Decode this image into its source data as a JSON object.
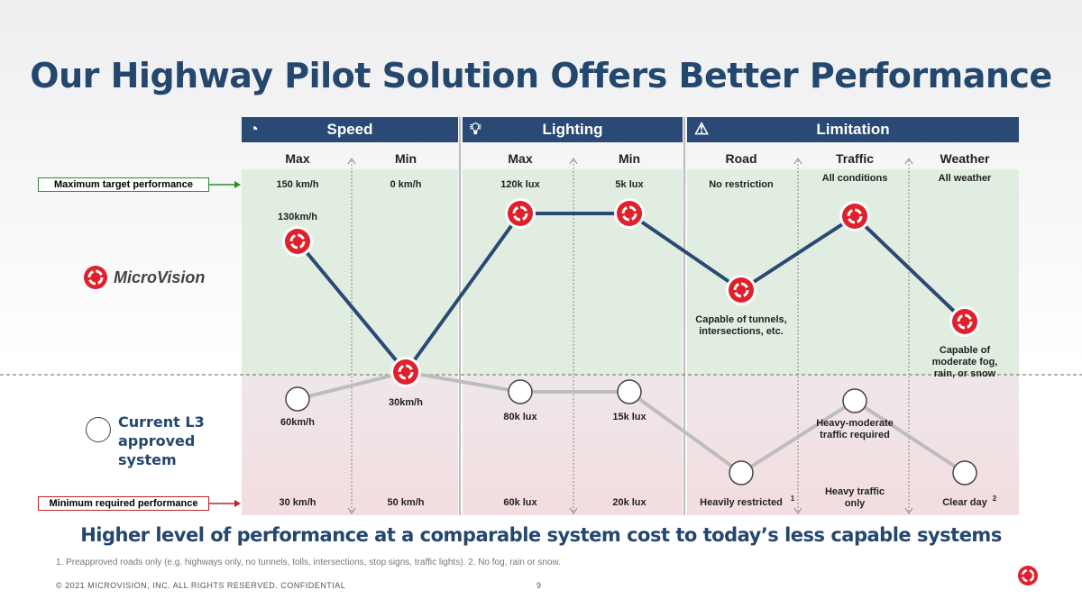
{
  "title": "Our Highway Pilot Solution Offers Better Performance",
  "panels": [
    {
      "label": "Speed",
      "icon": "speedometer-icon"
    },
    {
      "label": "Lighting",
      "icon": "lightbulb-icon"
    },
    {
      "label": "Limitation",
      "icon": "warning-icon"
    }
  ],
  "columns": [
    "Max",
    "Min",
    "Max",
    "Min",
    "Road",
    "Traffic",
    "Weather"
  ],
  "max_row": [
    "150 km/h",
    "0 km/h",
    "120k lux",
    "5k lux",
    "No restriction",
    "All conditions",
    "All weather"
  ],
  "min_row": [
    "30 km/h",
    "50 km/h",
    "60k lux",
    "20k lux",
    "Heavily restricted",
    "Heavy traffic only",
    "Clear day"
  ],
  "min_superscripts": {
    "road": "1",
    "weather": "2"
  },
  "microvision_labels": [
    "130km/h",
    "30km/h",
    "Capable of tunnels, intersections, etc.",
    "Capable of moderate fog, rain, or snow"
  ],
  "current_labels": [
    "60km/h",
    "80k lux",
    "15k lux",
    "Heavy-moderate traffic required"
  ],
  "callouts": {
    "max": "Maximum target performance",
    "min": "Minimum required performance"
  },
  "brand": "MicroVision",
  "legend_current": "Current L3 approved system",
  "bottom_line": "Higher level of performance at a comparable system cost to today’s less capable systems",
  "footnote": "1. Preapproved roads only (e.g. highways only, no tunnels, tolls, intersections, stop signs, traffic lights). 2. No fog, rain or snow.",
  "copyright": "© 2021 MICROVISION, INC. ALL RIGHTS RESERVED. CONFIDENTIAL",
  "page_number": "9",
  "colors": {
    "navy": "#2a4a75",
    "red": "#e0202b",
    "gray_line": "#bdbdbd"
  }
}
